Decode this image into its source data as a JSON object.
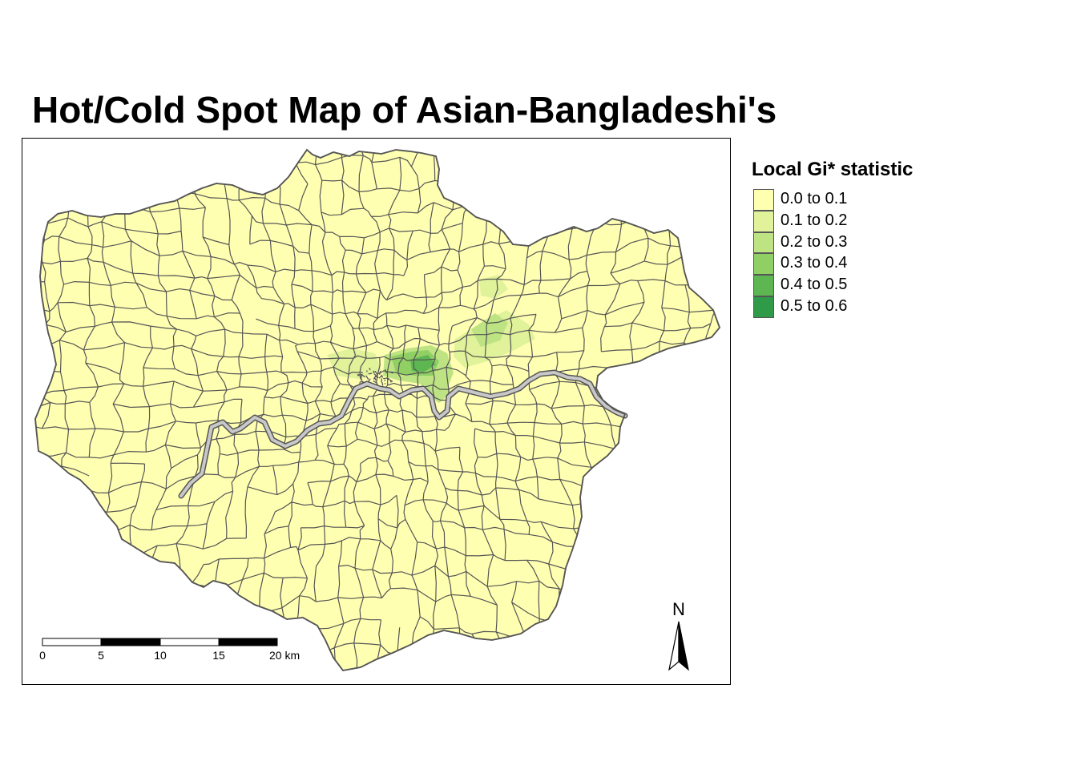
{
  "title": "Hot/Cold Spot Map of Asian-Bangladeshi's",
  "legend": {
    "title": "Local Gi* statistic",
    "items": [
      {
        "label": "0.0 to 0.1",
        "color": "#ffffb2"
      },
      {
        "label": "0.1 to 0.2",
        "color": "#e0f29a"
      },
      {
        "label": "0.2 to 0.3",
        "color": "#bde383"
      },
      {
        "label": "0.3 to 0.4",
        "color": "#8fcf63"
      },
      {
        "label": "0.4 to 0.5",
        "color": "#5eb653"
      },
      {
        "label": "0.5 to 0.6",
        "color": "#2f9b48"
      }
    ]
  },
  "scale_bar": {
    "ticks": [
      "0",
      "5",
      "10",
      "15",
      "20 km"
    ]
  },
  "north_arrow": {
    "label": "N"
  },
  "colors": {
    "boundary": "#555555",
    "river": "#c8c8c8",
    "base_fill": "#ffffb2"
  }
}
